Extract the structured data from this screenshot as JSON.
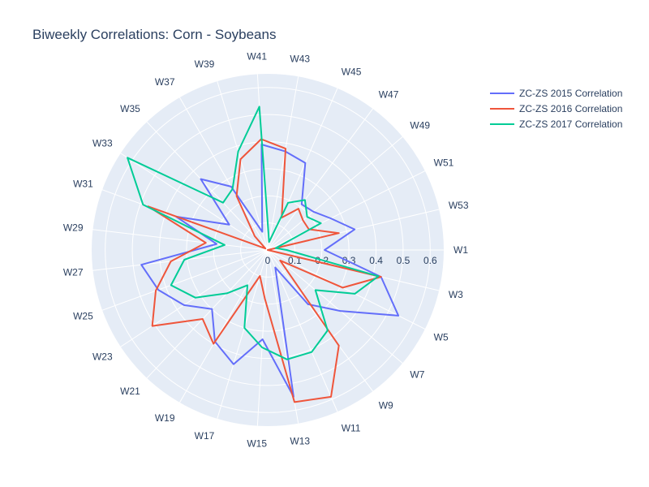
{
  "chart_data": {
    "type": "polar-line",
    "title": "Biweekly Correlations: Corn - Soybeans",
    "angular_categories": [
      "W1",
      "W3",
      "W5",
      "W7",
      "W9",
      "W11",
      "W13",
      "W15",
      "W17",
      "W19",
      "W21",
      "W23",
      "W25",
      "W27",
      "W29",
      "W31",
      "W33",
      "W35",
      "W37",
      "W39",
      "W41",
      "W43",
      "W45",
      "W47",
      "W49",
      "W51",
      "W53"
    ],
    "radial_range": [
      0,
      0.65
    ],
    "radial_ticks": [
      0,
      0.1,
      0.2,
      0.3,
      0.4,
      0.5,
      0.6
    ],
    "radial_tick_labels": [
      "0",
      "0.1",
      "0.2",
      "0.3",
      "0.4",
      "0.5",
      "0.6"
    ],
    "series": [
      {
        "name": "ZC-ZS 2015 Correlation",
        "color": "#636efa",
        "values": [
          0.21,
          0.43,
          0.54,
          0.35,
          0.25,
          0.07,
          0.55,
          0.33,
          0.44,
          0.39,
          0.3,
          0.37,
          0.43,
          0.47,
          0.19,
          0.36,
          0.17,
          0.36,
          0.27,
          0.07,
          0.39,
          0.37,
          0.35,
          0.21,
          0.22,
          0.26,
          0.33
        ]
      },
      {
        "name": "ZC-ZS 2016 Correlation",
        "color": "#ef553b",
        "values": [
          0.0,
          0.43,
          0.31,
          0.06,
          0.44,
          0.59,
          0.57,
          0.18,
          0.1,
          0.4,
          0.35,
          0.51,
          0.44,
          0.36,
          0.23,
          0.47,
          0.01,
          0.07,
          0.23,
          0.35,
          0.41,
          0.38,
          0.13,
          0.19,
          0.17,
          0.17,
          0.27
        ]
      },
      {
        "name": "ZC-ZS 2017 Correlation",
        "color": "#00cc96",
        "values": [
          0.07,
          0.42,
          0.36,
          0.23,
          0.37,
          0.41,
          0.41,
          0.36,
          0.3,
          0.15,
          0.22,
          0.32,
          0.38,
          0.31,
          0.16,
          0.49,
          0.62,
          0.24,
          0.26,
          0.38,
          0.53,
          0.03,
          0.19,
          0.23,
          0.19,
          0.22,
          0.03
        ]
      }
    ]
  }
}
